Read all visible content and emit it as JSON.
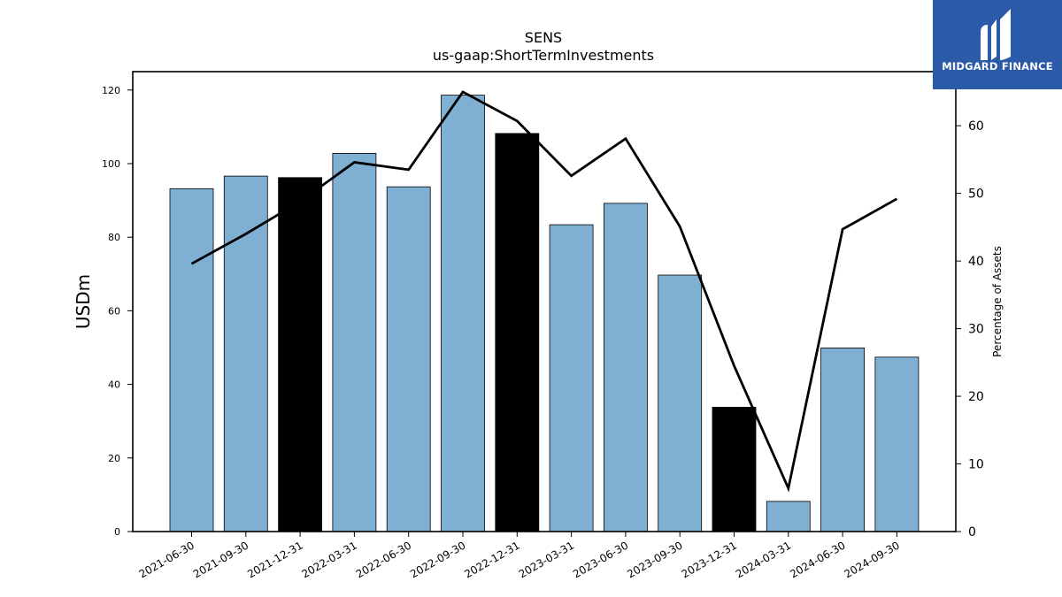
{
  "chart_data": {
    "type": "bar",
    "title": "SENS",
    "subtitle": "us-gaap:ShortTermInvestments",
    "ylabel": "USDm",
    "y2label": "Percentage of Assets",
    "ylim": [
      0,
      125
    ],
    "y2lim": [
      0,
      68
    ],
    "yticks": [
      "0",
      "20",
      "40",
      "60",
      "80",
      "100",
      "120"
    ],
    "y2ticks": [
      "0",
      "10",
      "20",
      "30",
      "40",
      "50",
      "60"
    ],
    "categories": [
      "2021-06-30",
      "2021-09-30",
      "2021-12-31",
      "2022-03-31",
      "2022-06-30",
      "2022-09-30",
      "2022-12-31",
      "2023-03-31",
      "2023-06-30",
      "2023-09-30",
      "2023-12-31",
      "2024-03-31",
      "2024-06-30",
      "2024-09-30"
    ],
    "series": [
      {
        "kind": "bar",
        "values": [
          93.2,
          96.6,
          96.2,
          102.8,
          93.7,
          118.6,
          108.2,
          83.4,
          89.2,
          69.7,
          33.8,
          8.2,
          49.9,
          47.4
        ],
        "highlighted": [
          false,
          false,
          true,
          false,
          false,
          false,
          true,
          false,
          false,
          false,
          true,
          false,
          false,
          false
        ]
      },
      {
        "kind": "line",
        "axis": "right",
        "values": [
          39.6,
          44.0,
          48.8,
          54.6,
          53.5,
          65.0,
          60.7,
          52.6,
          58.1,
          45.1,
          24.5,
          6.4,
          44.7,
          49.2
        ]
      }
    ],
    "colors": {
      "bar": "#7fafd3",
      "highlight_bar": "#000000",
      "line": "#000000"
    },
    "grid": false
  },
  "logo": {
    "text": "MIDGARD FINANCE",
    "background": "#2b5aa8"
  }
}
